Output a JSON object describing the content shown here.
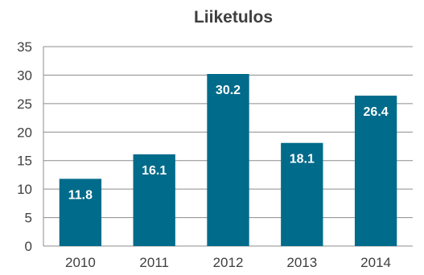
{
  "chart_data": {
    "type": "bar",
    "title": "Liiketulos",
    "categories": [
      "2010",
      "2011",
      "2012",
      "2013",
      "2014"
    ],
    "values": [
      11.8,
      16.1,
      30.2,
      18.1,
      26.4
    ],
    "data_labels": [
      "11.8",
      "16.1",
      "30.2",
      "18.1",
      "26.4"
    ],
    "xlabel": "",
    "ylabel": "",
    "ylim": [
      0,
      35
    ],
    "yticks": [
      "0",
      "5",
      "10",
      "15",
      "20",
      "25",
      "30",
      "35"
    ],
    "grid": true,
    "legend": "none",
    "bar_color": "#006B8A"
  }
}
